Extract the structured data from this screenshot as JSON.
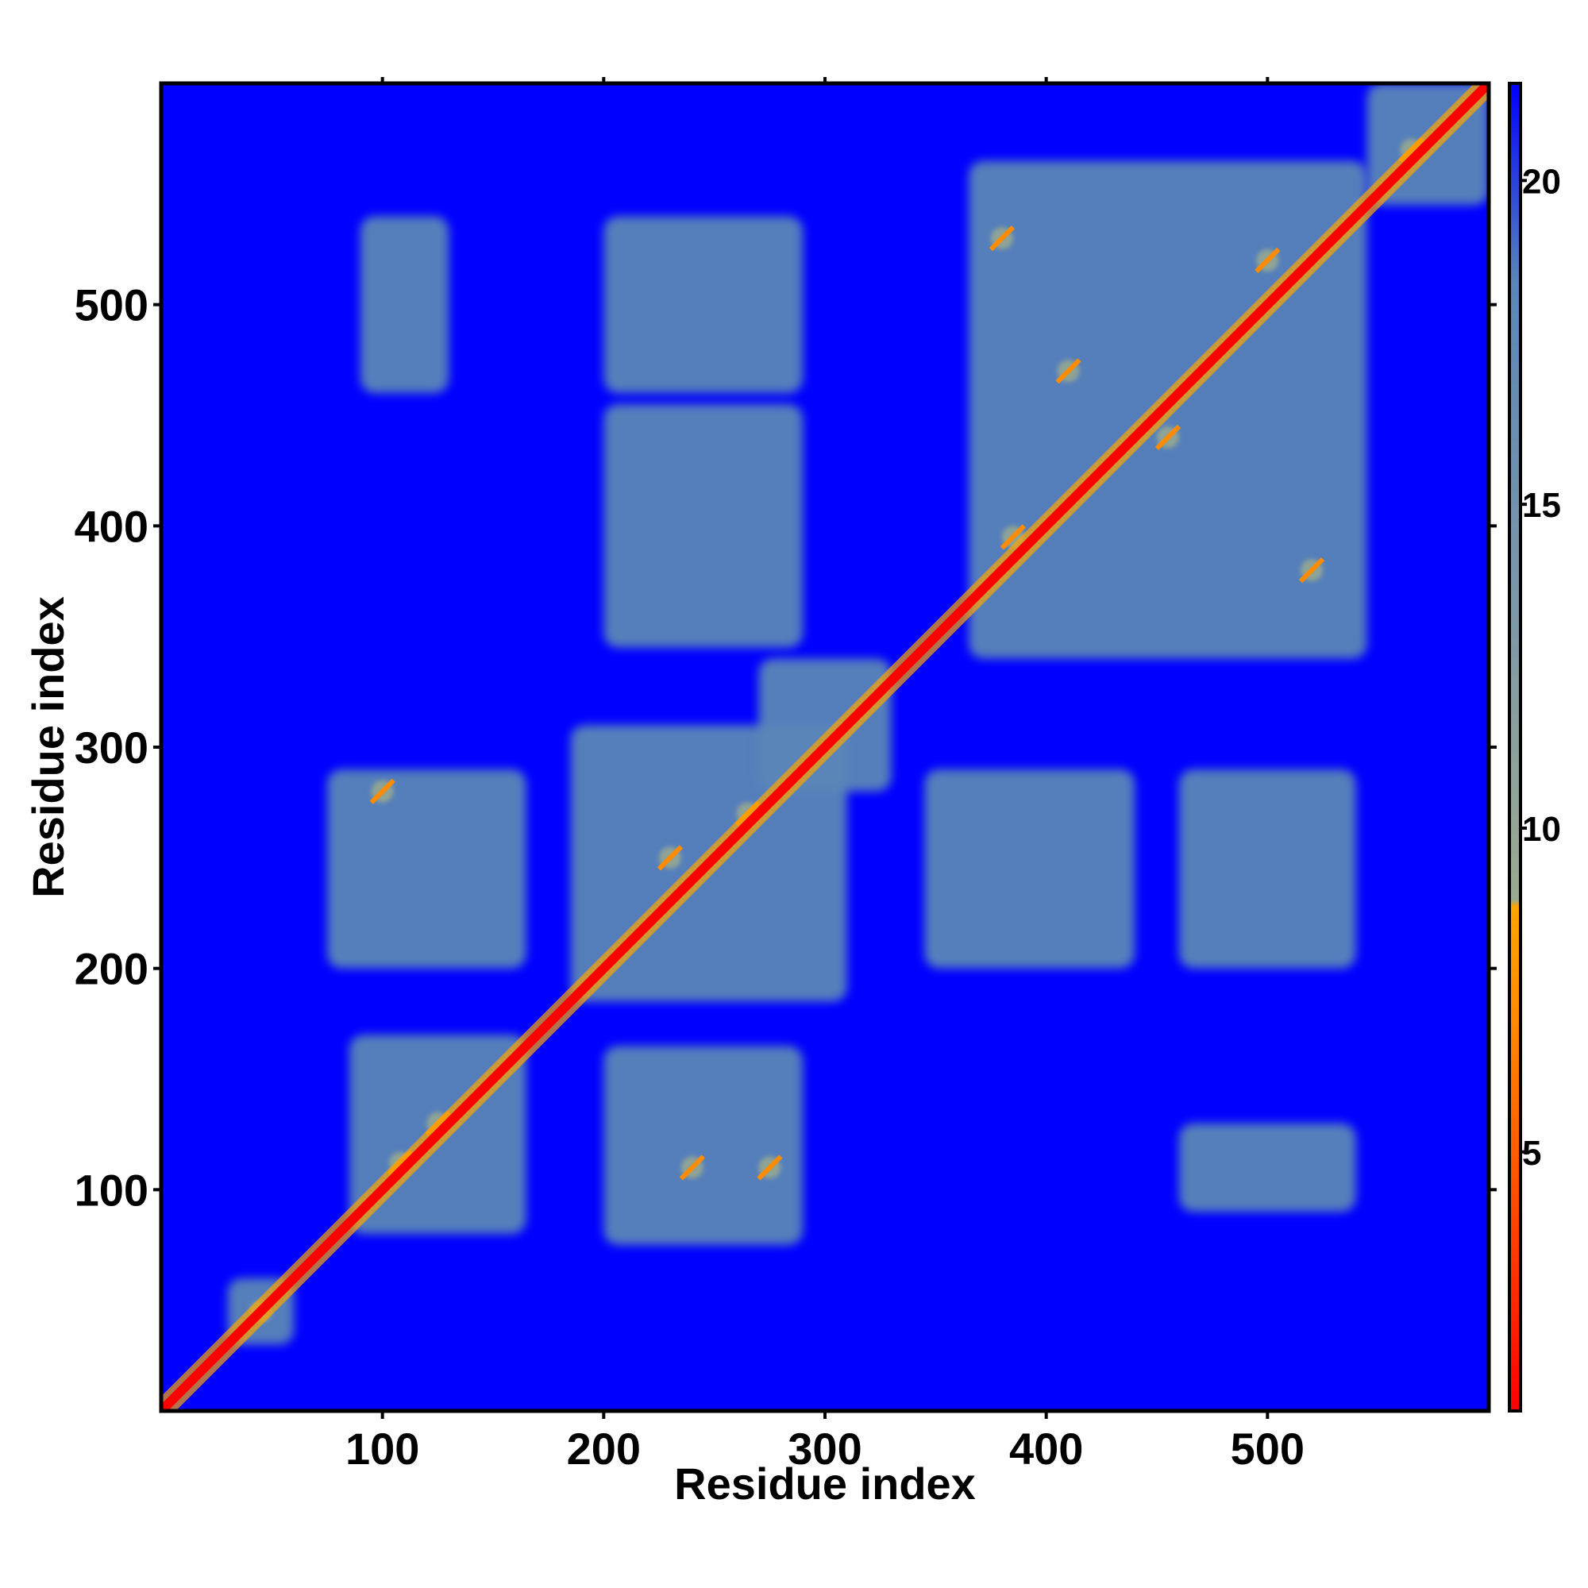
{
  "chart_data": {
    "type": "heatmap",
    "title": "",
    "xlabel": "Residue index",
    "ylabel": "Residue index",
    "xlim": [
      0,
      600
    ],
    "ylim": [
      0,
      600
    ],
    "x_ticks": [
      100,
      200,
      300,
      400,
      500
    ],
    "y_ticks": [
      100,
      200,
      300,
      400,
      500
    ],
    "colorbar": {
      "range": [
        1,
        21.5
      ],
      "ticks": [
        5,
        10,
        15,
        20
      ],
      "colors": {
        "low": "#ff0000",
        "mid_low": "#ff8c00",
        "mid": "#ffa500",
        "mid_high": "#9aaa8f",
        "high": "#5a86b8",
        "max": "#0000ff"
      }
    },
    "background_color": "#0000ff",
    "contact_color": "#5a86b8",
    "diagonal_color": "#ff0000",
    "blocks": [
      {
        "x": [
          30,
          60
        ],
        "y": [
          30,
          60
        ]
      },
      {
        "x": [
          85,
          165
        ],
        "y": [
          80,
          170
        ]
      },
      {
        "x": [
          185,
          310
        ],
        "y": [
          185,
          310
        ]
      },
      {
        "x": [
          365,
          545
        ],
        "y": [
          340,
          565
        ]
      },
      {
        "x": [
          545,
          600
        ],
        "y": [
          545,
          600
        ]
      },
      {
        "x": [
          200,
          290
        ],
        "y": [
          75,
          165
        ]
      },
      {
        "x": [
          75,
          165
        ],
        "y": [
          200,
          290
        ]
      },
      {
        "x": [
          200,
          290
        ],
        "y": [
          345,
          455
        ]
      },
      {
        "x": [
          200,
          290
        ],
        "y": [
          460,
          540
        ]
      },
      {
        "x": [
          345,
          440
        ],
        "y": [
          200,
          290
        ]
      },
      {
        "x": [
          460,
          540
        ],
        "y": [
          200,
          290
        ]
      },
      {
        "x": [
          460,
          540
        ],
        "y": [
          90,
          130
        ]
      },
      {
        "x": [
          90,
          130
        ],
        "y": [
          460,
          540
        ]
      },
      {
        "x": [
          270,
          330
        ],
        "y": [
          280,
          340
        ]
      }
    ],
    "hot_spots": [
      {
        "x": 45,
        "y": 45
      },
      {
        "x": 108,
        "y": 112
      },
      {
        "x": 125,
        "y": 130
      },
      {
        "x": 240,
        "y": 110
      },
      {
        "x": 275,
        "y": 110
      },
      {
        "x": 230,
        "y": 250
      },
      {
        "x": 265,
        "y": 270
      },
      {
        "x": 100,
        "y": 280
      },
      {
        "x": 385,
        "y": 395
      },
      {
        "x": 410,
        "y": 470
      },
      {
        "x": 455,
        "y": 440
      },
      {
        "x": 500,
        "y": 520
      },
      {
        "x": 520,
        "y": 380
      },
      {
        "x": 565,
        "y": 570
      },
      {
        "x": 380,
        "y": 530
      }
    ]
  }
}
